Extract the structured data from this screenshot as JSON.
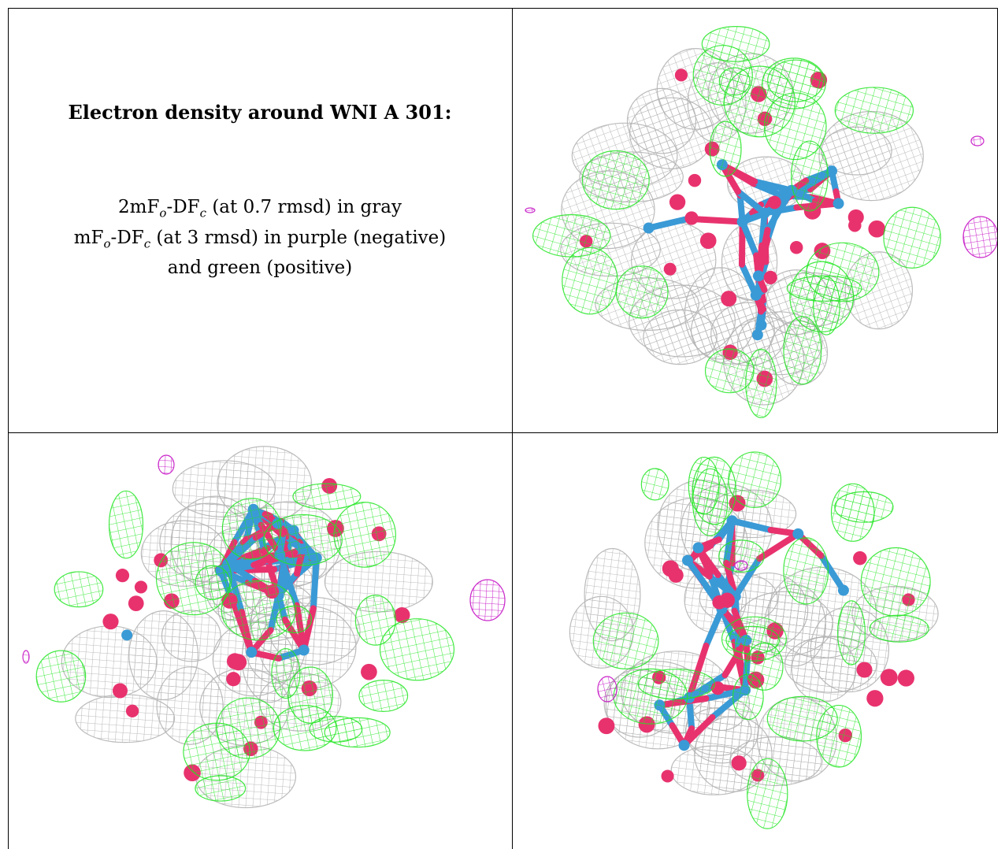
{
  "caption": {
    "title": "Electron density around WNI A 301:",
    "line1_a": "2mF",
    "line1_o": "o",
    "line1_b": "-DF",
    "line1_c": "c",
    "line1_rest": " (at 0.7 rmsd) in gray",
    "line2_a": "mF",
    "line2_o": "o",
    "line2_b": "-DF",
    "line2_c": "c",
    "line2_rest": " (at 3 rmsd) in purple (negative)",
    "line3": "and green (positive)"
  },
  "colors": {
    "gray_mesh": "#b4b4b4",
    "green_mesh": "#22e622",
    "purple_mesh": "#c81ec8",
    "oxygen": "#e8326e",
    "tungsten": "#3a9ad6"
  }
}
